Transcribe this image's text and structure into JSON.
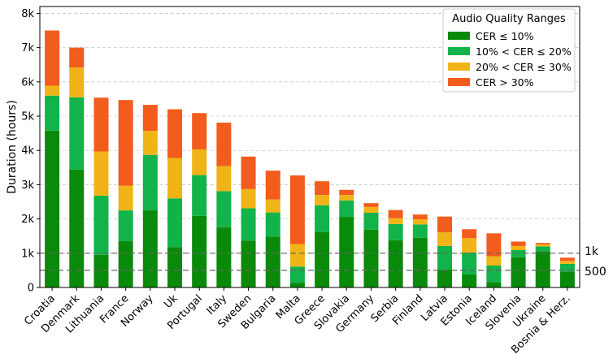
{
  "chart_data": {
    "type": "bar",
    "stacked": true,
    "ylabel": "Duration (hours)",
    "xlabel": "",
    "ylim": [
      0,
      8200
    ],
    "yticks": [
      0,
      1000,
      2000,
      3000,
      4000,
      5000,
      6000,
      7000,
      8000
    ],
    "ytick_labels": [
      "0",
      "1k",
      "2k",
      "3k",
      "4k",
      "5k",
      "6k",
      "7k",
      "8k"
    ],
    "grid": "horizontal-dashed",
    "legend": {
      "title": "Audio Quality Ranges",
      "placement": "top-right"
    },
    "reference_lines": [
      {
        "value": 1000,
        "label": "1k"
      },
      {
        "value": 500,
        "label": "500"
      }
    ],
    "categories": [
      "Croatia",
      "Denmark",
      "Lithuania",
      "France",
      "Norway",
      "Uk",
      "Portugal",
      "Italy",
      "Sweden",
      "Bulgaria",
      "Malta",
      "Greece",
      "Slovakia",
      "Germany",
      "Serbia",
      "Finland",
      "Latvia",
      "Estonia",
      "Iceland",
      "Slovenia",
      "Ukraine",
      "Bosnia & Herz."
    ],
    "series": [
      {
        "name": "CER ≤ 10%",
        "color": "#0a8a0a",
        "values": [
          4580,
          3440,
          950,
          1350,
          2250,
          1180,
          2090,
          1760,
          1370,
          1480,
          140,
          1620,
          2060,
          1690,
          1380,
          1450,
          520,
          380,
          160,
          880,
          1060,
          460
        ]
      },
      {
        "name": "10% < CER ≤ 20%",
        "color": "#12b34a",
        "values": [
          1020,
          2110,
          1730,
          900,
          1620,
          1420,
          1190,
          1050,
          940,
          710,
          470,
          780,
          480,
          490,
          470,
          390,
          690,
          640,
          480,
          210,
          140,
          230
        ]
      },
      {
        "name": "20% < CER ≤ 30%",
        "color": "#f0b418",
        "values": [
          290,
          870,
          1290,
          720,
          700,
          1180,
          750,
          730,
          560,
          380,
          660,
          300,
          160,
          170,
          170,
          150,
          400,
          420,
          270,
          120,
          60,
          90
        ]
      },
      {
        "name": "CER > 30%",
        "color": "#f25c1c",
        "values": [
          1610,
          580,
          1570,
          2500,
          760,
          1420,
          1060,
          1270,
          950,
          840,
          2000,
          400,
          150,
          110,
          240,
          140,
          460,
          260,
          670,
          130,
          40,
          90
        ]
      }
    ]
  }
}
